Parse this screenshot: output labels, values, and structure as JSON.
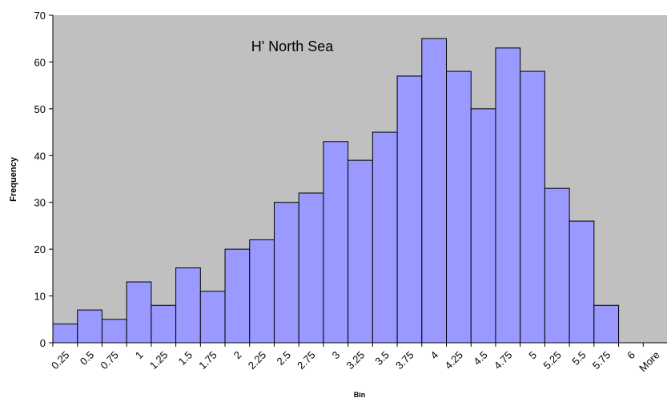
{
  "chart_data": {
    "type": "bar",
    "title": "H' North Sea",
    "xlabel": "Bin",
    "ylabel": "Frequency",
    "ylim": [
      0,
      70
    ],
    "ytick_step": 10,
    "grid": false,
    "plot_background": "#c0c0c0",
    "bar_color": "#9999ff",
    "bar_edge_color": "#000000",
    "categories": [
      "0.25",
      "0.5",
      "0.75",
      "1",
      "1.25",
      "1.5",
      "1.75",
      "2",
      "2.25",
      "2.5",
      "2.75",
      "3",
      "3.25",
      "3.5",
      "3.75",
      "4",
      "4.25",
      "4.5",
      "4.75",
      "5",
      "5.25",
      "5.5",
      "5.75",
      "6",
      "More"
    ],
    "values": [
      4,
      7,
      5,
      13,
      8,
      16,
      11,
      20,
      22,
      30,
      32,
      43,
      39,
      45,
      57,
      65,
      58,
      50,
      63,
      58,
      33,
      26,
      8,
      0,
      0
    ]
  }
}
